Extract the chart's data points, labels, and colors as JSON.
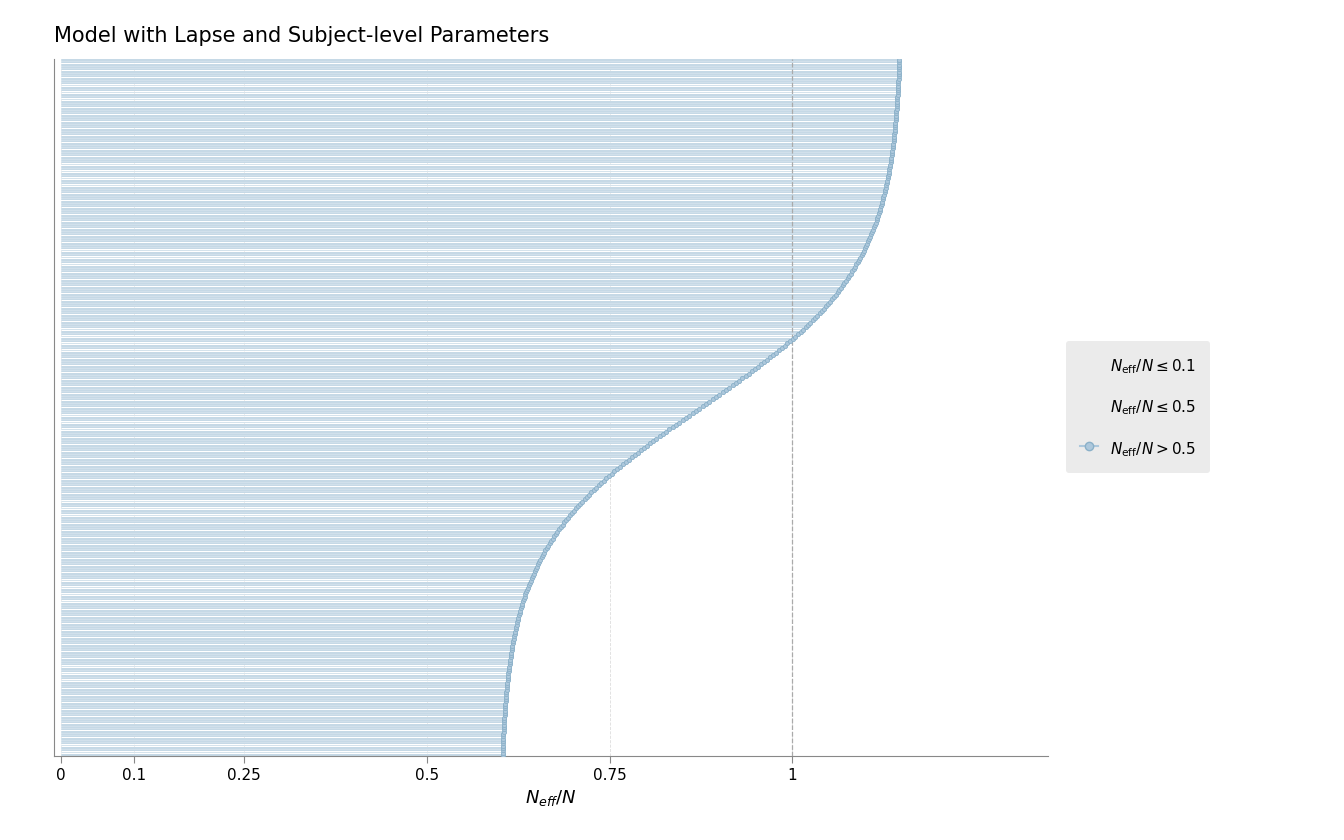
{
  "title": "Model with Lapse and Subject-level Parameters",
  "xlabel": "N_eff/N",
  "n_params": 300,
  "x_ticks": [
    0,
    0.1,
    0.25,
    0.5,
    0.75,
    1
  ],
  "x_tick_labels": [
    "0",
    "0.1",
    "0.25",
    "0.5",
    "0.75",
    "1"
  ],
  "xlim": [
    -0.01,
    1.35
  ],
  "vline_x": 1.0,
  "color_gt05": "#b8d0e0",
  "color_le05": "#c8d8e4",
  "color_le01": "#d0dce6",
  "bar_edge_color": "#ffffff",
  "bar_linewidth": 0.3,
  "bg_color": "#ffffff",
  "panel_bg": "#ffffff",
  "dot_color": "#adc8dc",
  "dot_edge_color": "#8ab0c8",
  "title_fontsize": 15,
  "axis_fontsize": 13,
  "tick_fontsize": 11,
  "legend_bg": "#ebebeb"
}
